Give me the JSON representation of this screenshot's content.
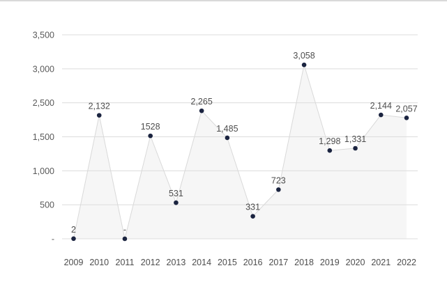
{
  "page": {
    "background_color": "#ffffff",
    "top_border_color": "#d9d9d9"
  },
  "chart_data": {
    "type": "line",
    "title": "",
    "xlabel": "",
    "ylabel": "",
    "grid": true,
    "legend": false,
    "area_fill": true,
    "categories": [
      "2009",
      "2010",
      "2011",
      "2012",
      "2013",
      "2014",
      "2015",
      "2016",
      "2017",
      "2018",
      "2019",
      "2020",
      "2021",
      "2022"
    ],
    "values": [
      2,
      2132,
      0,
      1528,
      531,
      2265,
      1485,
      331,
      723,
      3058,
      1298,
      1331,
      2144,
      2057
    ],
    "point_labels": [
      "2",
      "2,132",
      "-",
      "1528",
      "531",
      "2,265",
      "1,485",
      "331",
      "723",
      "3,058",
      "1,298",
      "1,331",
      "2,144",
      "2,057"
    ],
    "y_ticks": [
      {
        "label": "-",
        "value": 0
      },
      {
        "label": "500",
        "value": 500
      },
      {
        "label": "1,000",
        "value": 1000
      },
      {
        "label": "1,500",
        "value": 1500
      },
      {
        "label": "2,500",
        "value": 2500
      },
      {
        "label": "3,000",
        "value": 3000
      },
      {
        "label": "3,500",
        "value": 3500
      }
    ],
    "ylim": [
      0,
      3500
    ],
    "colors": {
      "dot": "#1b2440",
      "line": "#d9d9d9",
      "fill": "#f6f6f6",
      "grid": "#dcdcdc",
      "tick_text": "#595959",
      "label_text": "#4d4d4d"
    }
  }
}
